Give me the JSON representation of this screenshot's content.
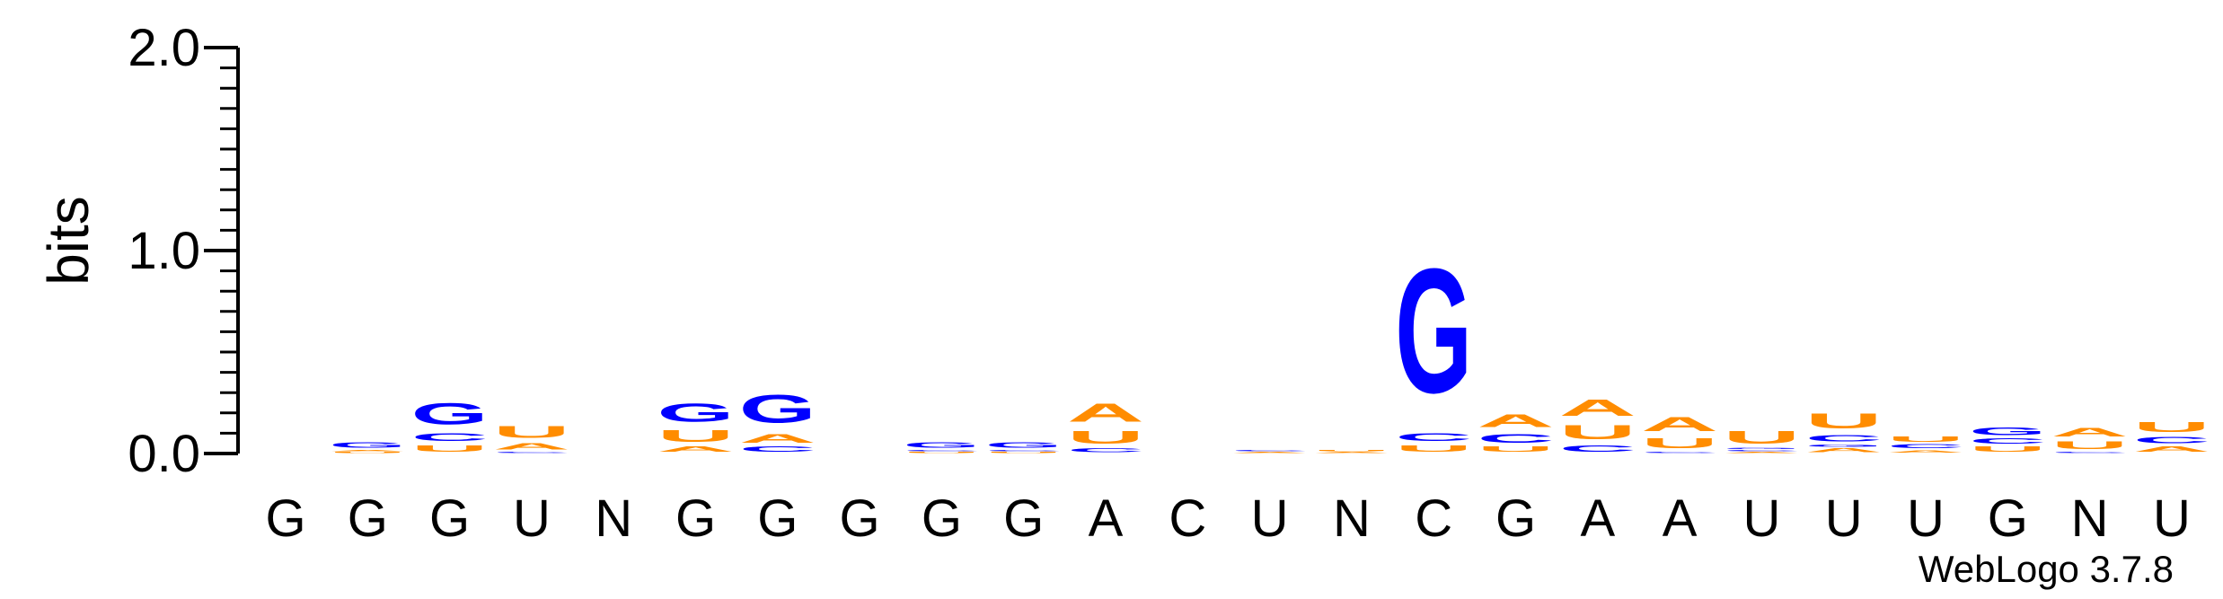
{
  "chart_data": {
    "type": "sequence-logo",
    "ylabel": "bits",
    "ylim": [
      0,
      2.0
    ],
    "y_ticks": [
      "0.0",
      "1.0",
      "2.0"
    ],
    "y_tick_values": [
      0,
      1,
      2
    ],
    "x_labels": [
      "G",
      "G",
      "G",
      "U",
      "N",
      "G",
      "G",
      "G",
      "G",
      "G",
      "A",
      "C",
      "U",
      "N",
      "C",
      "G",
      "A",
      "A",
      "U",
      "U",
      "U",
      "G",
      "N",
      "U"
    ],
    "credit": "WebLogo 3.7.8",
    "colors": {
      "G": "#0000ff",
      "C": "#0000ff",
      "A": "#ff8c00",
      "U": "#ff8c00",
      "axis": "#000000"
    },
    "stacks": [
      [],
      [
        {
          "letter": "U",
          "bits": 0.01
        },
        {
          "letter": "A",
          "bits": 0.01
        },
        {
          "letter": "G",
          "bits": 0.04
        }
      ],
      [
        {
          "letter": "U",
          "bits": 0.05
        },
        {
          "letter": "C",
          "bits": 0.06
        },
        {
          "letter": "G",
          "bits": 0.17
        }
      ],
      [
        {
          "letter": "C",
          "bits": 0.01
        },
        {
          "letter": "A",
          "bits": 0.05
        },
        {
          "letter": "U",
          "bits": 0.09
        }
      ],
      [],
      [
        {
          "letter": "A",
          "bits": 0.04
        },
        {
          "letter": "U",
          "bits": 0.09
        },
        {
          "letter": "G",
          "bits": 0.14
        }
      ],
      [
        {
          "letter": "C",
          "bits": 0.04
        },
        {
          "letter": "A",
          "bits": 0.07
        },
        {
          "letter": "G",
          "bits": 0.22
        }
      ],
      [],
      [
        {
          "letter": "U",
          "bits": 0.01
        },
        {
          "letter": "C",
          "bits": 0.01
        },
        {
          "letter": "G",
          "bits": 0.04
        }
      ],
      [
        {
          "letter": "U",
          "bits": 0.01
        },
        {
          "letter": "C",
          "bits": 0.01
        },
        {
          "letter": "G",
          "bits": 0.04
        }
      ],
      [
        {
          "letter": "C",
          "bits": 0.03
        },
        {
          "letter": "U",
          "bits": 0.1
        },
        {
          "letter": "A",
          "bits": 0.14
        }
      ],
      [],
      [
        {
          "letter": "A",
          "bits": 0.01
        },
        {
          "letter": "C",
          "bits": 0.01
        }
      ],
      [
        {
          "letter": "A",
          "bits": 0.01
        },
        {
          "letter": "U",
          "bits": 0.01
        }
      ],
      [
        {
          "letter": "U",
          "bits": 0.05
        },
        {
          "letter": "C",
          "bits": 0.06
        },
        {
          "letter": "G",
          "bits": 0.98
        }
      ],
      [
        {
          "letter": "U",
          "bits": 0.04
        },
        {
          "letter": "C",
          "bits": 0.07
        },
        {
          "letter": "A",
          "bits": 0.1
        }
      ],
      [
        {
          "letter": "C",
          "bits": 0.05
        },
        {
          "letter": "U",
          "bits": 0.11
        },
        {
          "letter": "A",
          "bits": 0.13
        }
      ],
      [
        {
          "letter": "C",
          "bits": 0.01
        },
        {
          "letter": "U",
          "bits": 0.08
        },
        {
          "letter": "A",
          "bits": 0.11
        }
      ],
      [
        {
          "letter": "A",
          "bits": 0.01
        },
        {
          "letter": "C",
          "bits": 0.01
        },
        {
          "letter": "G",
          "bits": 0.01
        },
        {
          "letter": "U",
          "bits": 0.1
        }
      ],
      [
        {
          "letter": "A",
          "bits": 0.03
        },
        {
          "letter": "G",
          "bits": 0.02
        },
        {
          "letter": "C",
          "bits": 0.05
        },
        {
          "letter": "U",
          "bits": 0.12
        }
      ],
      [
        {
          "letter": "A",
          "bits": 0.02
        },
        {
          "letter": "C",
          "bits": 0.03
        },
        {
          "letter": "U",
          "bits": 0.04
        }
      ],
      [
        {
          "letter": "U",
          "bits": 0.04
        },
        {
          "letter": "C",
          "bits": 0.04
        },
        {
          "letter": "G",
          "bits": 0.06
        }
      ],
      [
        {
          "letter": "C",
          "bits": 0.01
        },
        {
          "letter": "U",
          "bits": 0.06
        },
        {
          "letter": "A",
          "bits": 0.07
        }
      ],
      [
        {
          "letter": "A",
          "bits": 0.04
        },
        {
          "letter": "C",
          "bits": 0.05
        },
        {
          "letter": "U",
          "bits": 0.08
        }
      ]
    ]
  }
}
